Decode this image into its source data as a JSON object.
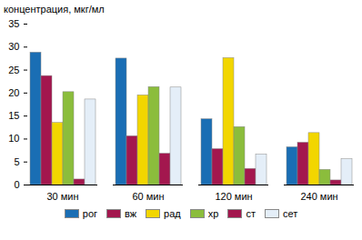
{
  "chart_data": {
    "type": "bar",
    "y_label": "концентрация, мкг/мл",
    "categories": [
      "30 мин",
      "60 мин",
      "120 мин",
      "240 мин"
    ],
    "series": [
      {
        "name": "рог",
        "color": "#1a6eb4",
        "values": [
          28.8,
          27.5,
          14.3,
          8.2
        ]
      },
      {
        "name": "вж",
        "color": "#a3174e",
        "values": [
          23.7,
          10.6,
          7.8,
          9.2
        ]
      },
      {
        "name": "рад",
        "color": "#f2d600",
        "values": [
          13.5,
          19.5,
          27.6,
          11.3
        ]
      },
      {
        "name": "хр",
        "color": "#8bbd3c",
        "values": [
          20.2,
          21.3,
          12.6,
          3.3
        ]
      },
      {
        "name": "ст",
        "color": "#a3174e",
        "values": [
          1.2,
          6.8,
          3.5,
          1.0
        ]
      },
      {
        "name": "сет",
        "color": "#e4eef8",
        "values": [
          18.6,
          21.2,
          6.6,
          5.6
        ]
      }
    ],
    "ylim": [
      0,
      35
    ],
    "yticks": [
      0,
      5,
      10,
      15,
      20,
      25,
      30,
      35
    ],
    "grid": false,
    "legend": "bottom"
  }
}
